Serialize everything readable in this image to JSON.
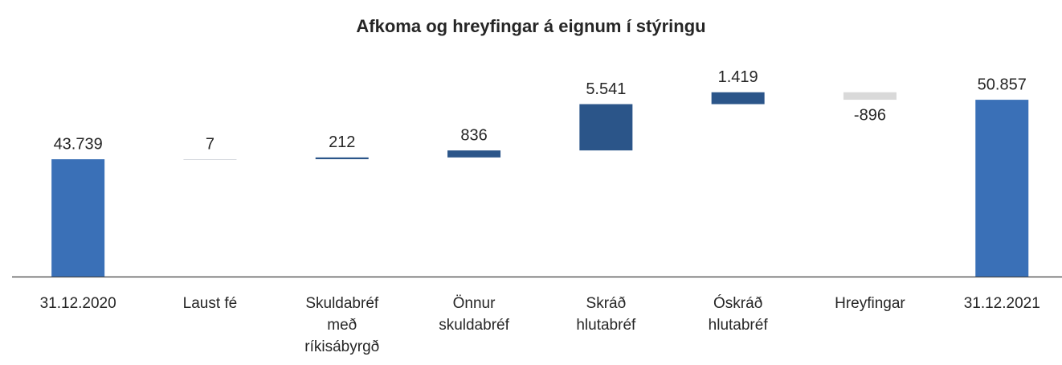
{
  "chart_data": {
    "type": "waterfall",
    "title": "Afkoma og hreyfingar á eignum í stýringu",
    "categories": [
      "31.12.2020",
      "Laust fé",
      "Skuldabréf með ríkisábyrgð",
      "Önnur skuldabréf",
      "Skráð hlutabréf",
      "Óskráð hlutabréf",
      "Hreyfingar",
      "31.12.2021"
    ],
    "measure": [
      "absolute",
      "relative",
      "relative",
      "relative",
      "relative",
      "relative",
      "relative",
      "total"
    ],
    "values": [
      43739,
      7,
      212,
      836,
      5541,
      1419,
      -896,
      50857
    ],
    "value_labels": [
      "43.739",
      "7",
      "212",
      "836",
      "5.541",
      "1.419",
      "-896",
      "50.857"
    ],
    "colors": [
      "#3a70b7",
      "#d6d9de",
      "#2b5589",
      "#2b5589",
      "#2b5589",
      "#2b5589",
      "#d9d9d9",
      "#3a70b7"
    ],
    "ylim": [
      29700,
      55100
    ]
  }
}
